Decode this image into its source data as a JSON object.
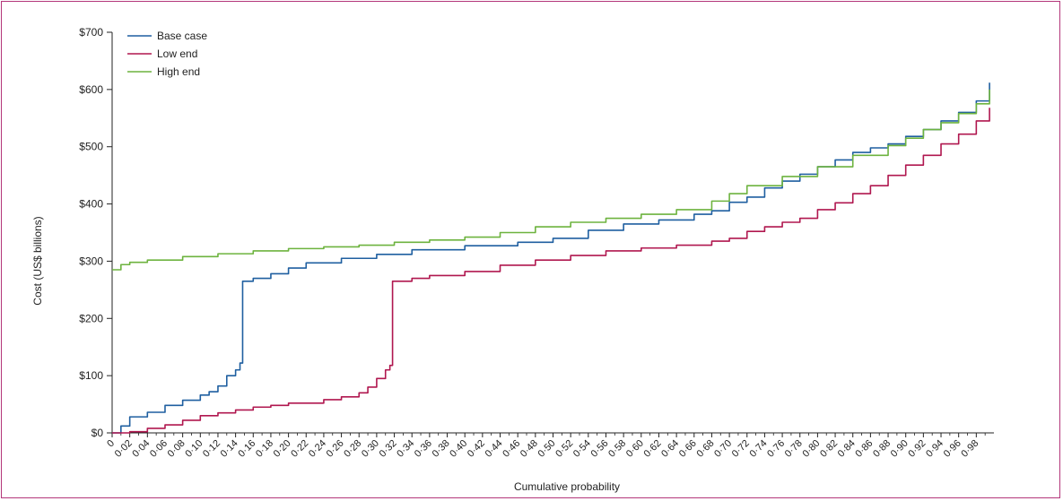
{
  "chart_data": {
    "type": "line",
    "xlabel": "Cumulative probability",
    "ylabel": "Cost (US$ billions)",
    "xlim": [
      0,
      1
    ],
    "ylim": [
      0,
      700
    ],
    "x_ticks": [
      "0",
      "0·02",
      "0·04",
      "0·06",
      "0·08",
      "0·10",
      "0·12",
      "0·14",
      "0·16",
      "0·18",
      "0·20",
      "0·22",
      "0·24",
      "0·26",
      "0·28",
      "0·30",
      "0·32",
      "0·34",
      "0·36",
      "0·38",
      "0·40",
      "0·42",
      "0·44",
      "0·46",
      "0·48",
      "0·50",
      "0·52",
      "0·54",
      "0·56",
      "0·58",
      "0·60",
      "0·62",
      "0·64",
      "0·66",
      "0·68",
      "0·70",
      "0·72",
      "0·74",
      "0·76",
      "0·78",
      "0·80",
      "0·82",
      "0·84",
      "0·86",
      "0·88",
      "0·90",
      "0·92",
      "0·94",
      "0·96",
      "0·98"
    ],
    "y_ticks": [
      {
        "value": 0,
        "label": "$0"
      },
      {
        "value": 100,
        "label": "$100"
      },
      {
        "value": 200,
        "label": "$200"
      },
      {
        "value": 300,
        "label": "$300"
      },
      {
        "value": 400,
        "label": "$400"
      },
      {
        "value": 500,
        "label": "$500"
      },
      {
        "value": 600,
        "label": "$600"
      },
      {
        "value": 700,
        "label": "$700"
      }
    ],
    "grid": false,
    "legend": "top-left",
    "series": [
      {
        "name": "Base case",
        "color": "#1f5fa0",
        "points": [
          [
            0,
            0
          ],
          [
            0.01,
            12
          ],
          [
            0.02,
            28
          ],
          [
            0.04,
            36
          ],
          [
            0.06,
            48
          ],
          [
            0.08,
            57
          ],
          [
            0.1,
            66
          ],
          [
            0.11,
            72
          ],
          [
            0.12,
            82
          ],
          [
            0.13,
            100
          ],
          [
            0.14,
            110
          ],
          [
            0.145,
            122
          ],
          [
            0.148,
            265
          ],
          [
            0.16,
            270
          ],
          [
            0.18,
            278
          ],
          [
            0.2,
            288
          ],
          [
            0.22,
            297
          ],
          [
            0.26,
            305
          ],
          [
            0.3,
            312
          ],
          [
            0.34,
            320
          ],
          [
            0.4,
            327
          ],
          [
            0.46,
            333
          ],
          [
            0.5,
            340
          ],
          [
            0.54,
            354
          ],
          [
            0.58,
            365
          ],
          [
            0.62,
            372
          ],
          [
            0.66,
            382
          ],
          [
            0.68,
            388
          ],
          [
            0.7,
            403
          ],
          [
            0.72,
            412
          ],
          [
            0.74,
            428
          ],
          [
            0.76,
            440
          ],
          [
            0.78,
            452
          ],
          [
            0.8,
            465
          ],
          [
            0.82,
            477
          ],
          [
            0.84,
            490
          ],
          [
            0.86,
            498
          ],
          [
            0.88,
            505
          ],
          [
            0.9,
            518
          ],
          [
            0.92,
            530
          ],
          [
            0.94,
            545
          ],
          [
            0.96,
            560
          ],
          [
            0.98,
            580
          ],
          [
            0.995,
            612
          ]
        ]
      },
      {
        "name": "Low end",
        "color": "#b0174f",
        "points": [
          [
            0,
            0
          ],
          [
            0.02,
            2
          ],
          [
            0.04,
            8
          ],
          [
            0.06,
            14
          ],
          [
            0.08,
            22
          ],
          [
            0.1,
            30
          ],
          [
            0.12,
            35
          ],
          [
            0.14,
            40
          ],
          [
            0.16,
            45
          ],
          [
            0.18,
            48
          ],
          [
            0.2,
            52
          ],
          [
            0.24,
            58
          ],
          [
            0.26,
            63
          ],
          [
            0.28,
            70
          ],
          [
            0.29,
            80
          ],
          [
            0.3,
            95
          ],
          [
            0.31,
            110
          ],
          [
            0.315,
            118
          ],
          [
            0.318,
            265
          ],
          [
            0.34,
            270
          ],
          [
            0.36,
            275
          ],
          [
            0.4,
            282
          ],
          [
            0.44,
            293
          ],
          [
            0.48,
            302
          ],
          [
            0.52,
            310
          ],
          [
            0.56,
            318
          ],
          [
            0.6,
            323
          ],
          [
            0.64,
            328
          ],
          [
            0.68,
            335
          ],
          [
            0.7,
            340
          ],
          [
            0.72,
            352
          ],
          [
            0.74,
            360
          ],
          [
            0.76,
            368
          ],
          [
            0.78,
            375
          ],
          [
            0.8,
            390
          ],
          [
            0.82,
            402
          ],
          [
            0.84,
            418
          ],
          [
            0.86,
            432
          ],
          [
            0.88,
            450
          ],
          [
            0.9,
            468
          ],
          [
            0.92,
            485
          ],
          [
            0.94,
            505
          ],
          [
            0.96,
            522
          ],
          [
            0.98,
            545
          ],
          [
            0.995,
            568
          ]
        ]
      },
      {
        "name": "High end",
        "color": "#6db33f",
        "points": [
          [
            0,
            285
          ],
          [
            0.01,
            294
          ],
          [
            0.02,
            298
          ],
          [
            0.04,
            302
          ],
          [
            0.08,
            308
          ],
          [
            0.12,
            313
          ],
          [
            0.16,
            318
          ],
          [
            0.2,
            322
          ],
          [
            0.24,
            325
          ],
          [
            0.28,
            328
          ],
          [
            0.32,
            333
          ],
          [
            0.36,
            337
          ],
          [
            0.4,
            342
          ],
          [
            0.44,
            350
          ],
          [
            0.48,
            360
          ],
          [
            0.52,
            368
          ],
          [
            0.56,
            375
          ],
          [
            0.6,
            382
          ],
          [
            0.64,
            390
          ],
          [
            0.68,
            405
          ],
          [
            0.7,
            418
          ],
          [
            0.72,
            432
          ],
          [
            0.76,
            448
          ],
          [
            0.8,
            465
          ],
          [
            0.84,
            485
          ],
          [
            0.88,
            502
          ],
          [
            0.9,
            515
          ],
          [
            0.92,
            530
          ],
          [
            0.94,
            542
          ],
          [
            0.96,
            558
          ],
          [
            0.98,
            575
          ],
          [
            0.995,
            600
          ]
        ]
      }
    ]
  }
}
